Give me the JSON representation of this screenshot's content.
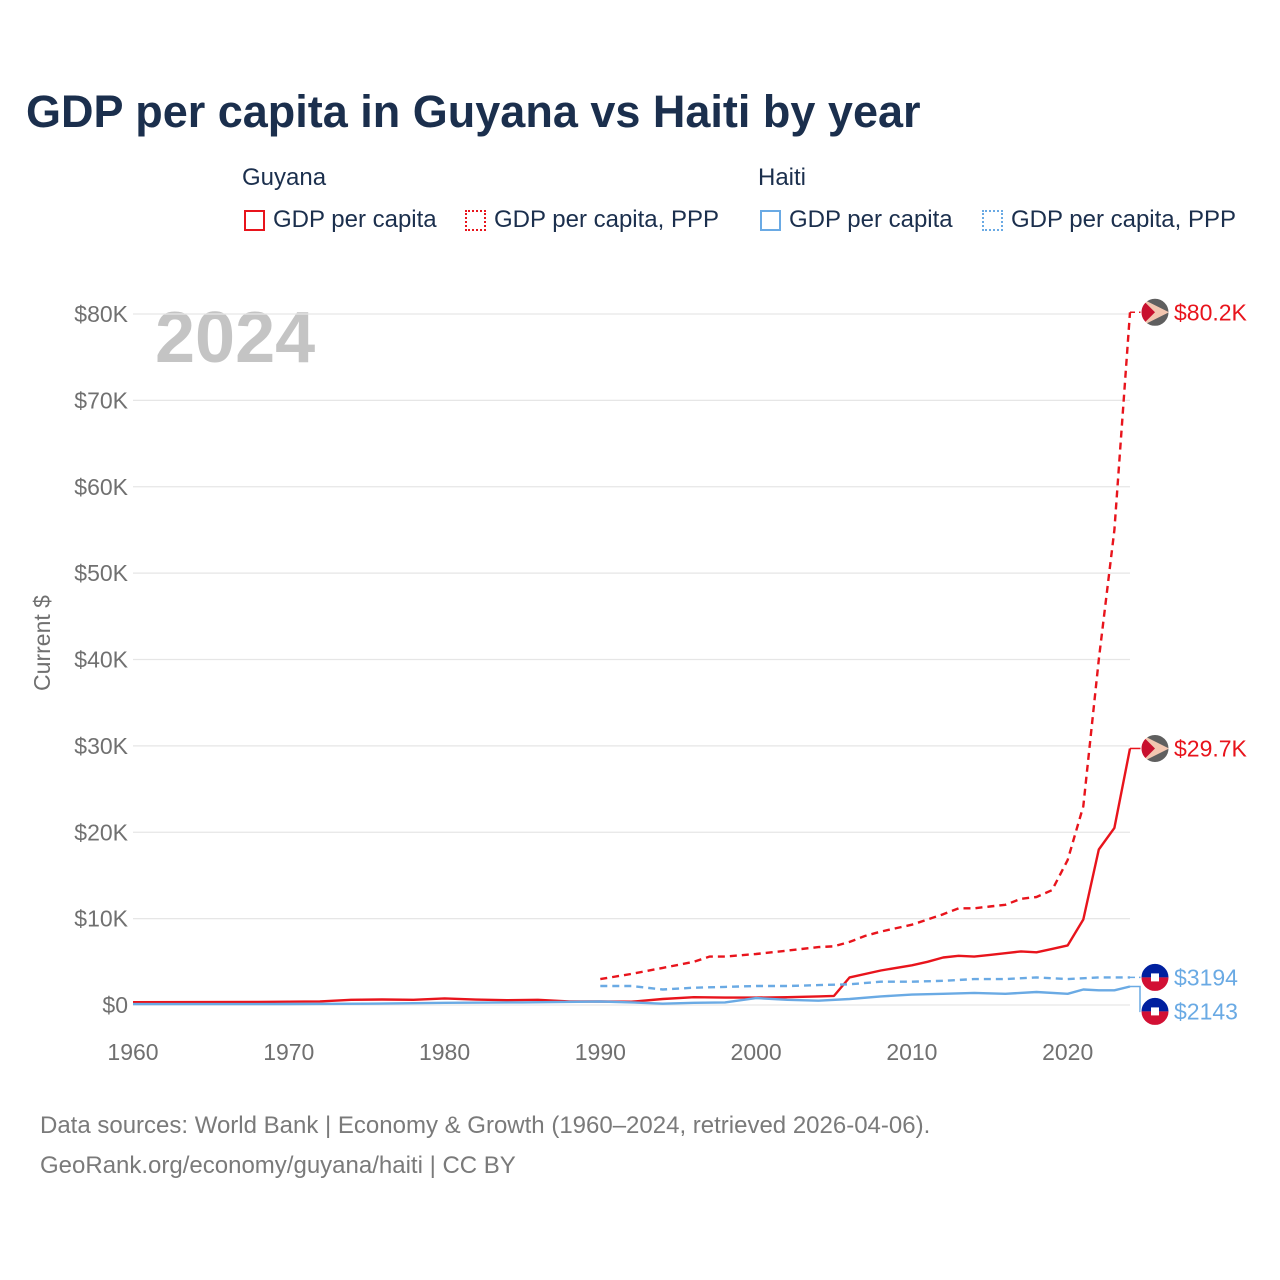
{
  "title": "GDP per capita in Guyana vs Haiti by year",
  "legend": {
    "groups": [
      {
        "name": "Guyana",
        "items": [
          "GDP per capita",
          "GDP per capita, PPP"
        ]
      },
      {
        "name": "Haiti",
        "items": [
          "GDP per capita",
          "GDP per capita, PPP"
        ]
      }
    ]
  },
  "year_label": "2024",
  "source": {
    "line1": "Data sources: World Bank | Economy & Growth (1960–2024, retrieved 2026-04-06).",
    "line2": "GeoRank.org/economy/guyana/haiti | CC BY"
  },
  "colors": {
    "guyana": "#e8141c",
    "haiti": "#6aaae4",
    "grid": "#e6e6e6",
    "axis_text": "#707070",
    "year_watermark": "#c4c4c4"
  },
  "chart_data": {
    "type": "line",
    "title": "GDP per capita in Guyana vs Haiti by year",
    "xlabel": "",
    "ylabel": "Current $",
    "xlim": [
      1960,
      2024
    ],
    "ylim": [
      0,
      80000
    ],
    "x_ticks": [
      1960,
      1970,
      1980,
      1990,
      2000,
      2010,
      2020
    ],
    "y_ticks": [
      0,
      10000,
      20000,
      30000,
      40000,
      50000,
      60000,
      70000,
      80000
    ],
    "y_tick_labels": [
      "$0",
      "$10K",
      "$20K",
      "$30K",
      "$40K",
      "$50K",
      "$60K",
      "$70K",
      "$80K"
    ],
    "grid": true,
    "series": [
      {
        "name": "Guyana GDP per capita",
        "country": "Guyana",
        "style": "solid",
        "color": "#e8141c",
        "end_label": "$29.7K",
        "points": [
          [
            1960,
            320
          ],
          [
            1964,
            330
          ],
          [
            1968,
            360
          ],
          [
            1972,
            420
          ],
          [
            1974,
            600
          ],
          [
            1976,
            640
          ],
          [
            1978,
            600
          ],
          [
            1980,
            760
          ],
          [
            1982,
            620
          ],
          [
            1984,
            560
          ],
          [
            1986,
            600
          ],
          [
            1988,
            420
          ],
          [
            1990,
            400
          ],
          [
            1992,
            380
          ],
          [
            1994,
            700
          ],
          [
            1996,
            900
          ],
          [
            1998,
            860
          ],
          [
            2000,
            860
          ],
          [
            2002,
            900
          ],
          [
            2004,
            1000
          ],
          [
            2005,
            1050
          ],
          [
            2006,
            3200
          ],
          [
            2008,
            4000
          ],
          [
            2010,
            4600
          ],
          [
            2011,
            5000
          ],
          [
            2012,
            5500
          ],
          [
            2013,
            5700
          ],
          [
            2014,
            5600
          ],
          [
            2015,
            5800
          ],
          [
            2016,
            6000
          ],
          [
            2017,
            6200
          ],
          [
            2018,
            6100
          ],
          [
            2019,
            6500
          ],
          [
            2020,
            6900
          ],
          [
            2021,
            9900
          ],
          [
            2022,
            18000
          ],
          [
            2023,
            20500
          ],
          [
            2024,
            29700
          ]
        ]
      },
      {
        "name": "Guyana GDP per capita, PPP",
        "country": "Guyana",
        "style": "dashed",
        "color": "#e8141c",
        "end_label": "$80.2K",
        "points": [
          [
            1990,
            3000
          ],
          [
            1992,
            3600
          ],
          [
            1994,
            4300
          ],
          [
            1996,
            5000
          ],
          [
            1997,
            5600
          ],
          [
            1998,
            5600
          ],
          [
            2000,
            5900
          ],
          [
            2002,
            6300
          ],
          [
            2004,
            6700
          ],
          [
            2005,
            6800
          ],
          [
            2006,
            7300
          ],
          [
            2007,
            8000
          ],
          [
            2008,
            8500
          ],
          [
            2010,
            9300
          ],
          [
            2011,
            9900
          ],
          [
            2012,
            10500
          ],
          [
            2013,
            11200
          ],
          [
            2014,
            11200
          ],
          [
            2015,
            11400
          ],
          [
            2016,
            11600
          ],
          [
            2017,
            12300
          ],
          [
            2018,
            12500
          ],
          [
            2019,
            13300
          ],
          [
            2020,
            16800
          ],
          [
            2021,
            23000
          ],
          [
            2022,
            40000
          ],
          [
            2023,
            55000
          ],
          [
            2024,
            80200
          ]
        ]
      },
      {
        "name": "Haiti GDP per capita",
        "country": "Haiti",
        "style": "solid",
        "color": "#6aaae4",
        "end_label": "$2143",
        "points": [
          [
            1960,
            100
          ],
          [
            1970,
            110
          ],
          [
            1975,
            150
          ],
          [
            1980,
            250
          ],
          [
            1985,
            300
          ],
          [
            1990,
            400
          ],
          [
            1992,
            300
          ],
          [
            1994,
            150
          ],
          [
            1996,
            250
          ],
          [
            1998,
            300
          ],
          [
            2000,
            800
          ],
          [
            2002,
            600
          ],
          [
            2004,
            500
          ],
          [
            2006,
            700
          ],
          [
            2008,
            1000
          ],
          [
            2010,
            1200
          ],
          [
            2012,
            1300
          ],
          [
            2014,
            1400
          ],
          [
            2016,
            1300
          ],
          [
            2018,
            1500
          ],
          [
            2020,
            1300
          ],
          [
            2021,
            1800
          ],
          [
            2022,
            1700
          ],
          [
            2023,
            1700
          ],
          [
            2024,
            2143
          ]
        ]
      },
      {
        "name": "Haiti GDP per capita, PPP",
        "country": "Haiti",
        "style": "dashed",
        "color": "#6aaae4",
        "end_label": "$3194",
        "points": [
          [
            1990,
            2200
          ],
          [
            1992,
            2200
          ],
          [
            1994,
            1800
          ],
          [
            1996,
            2000
          ],
          [
            1998,
            2100
          ],
          [
            2000,
            2200
          ],
          [
            2002,
            2200
          ],
          [
            2004,
            2300
          ],
          [
            2006,
            2400
          ],
          [
            2008,
            2700
          ],
          [
            2010,
            2700
          ],
          [
            2012,
            2800
          ],
          [
            2014,
            3000
          ],
          [
            2016,
            3000
          ],
          [
            2018,
            3200
          ],
          [
            2020,
            3000
          ],
          [
            2022,
            3200
          ],
          [
            2024,
            3194
          ]
        ]
      }
    ]
  }
}
